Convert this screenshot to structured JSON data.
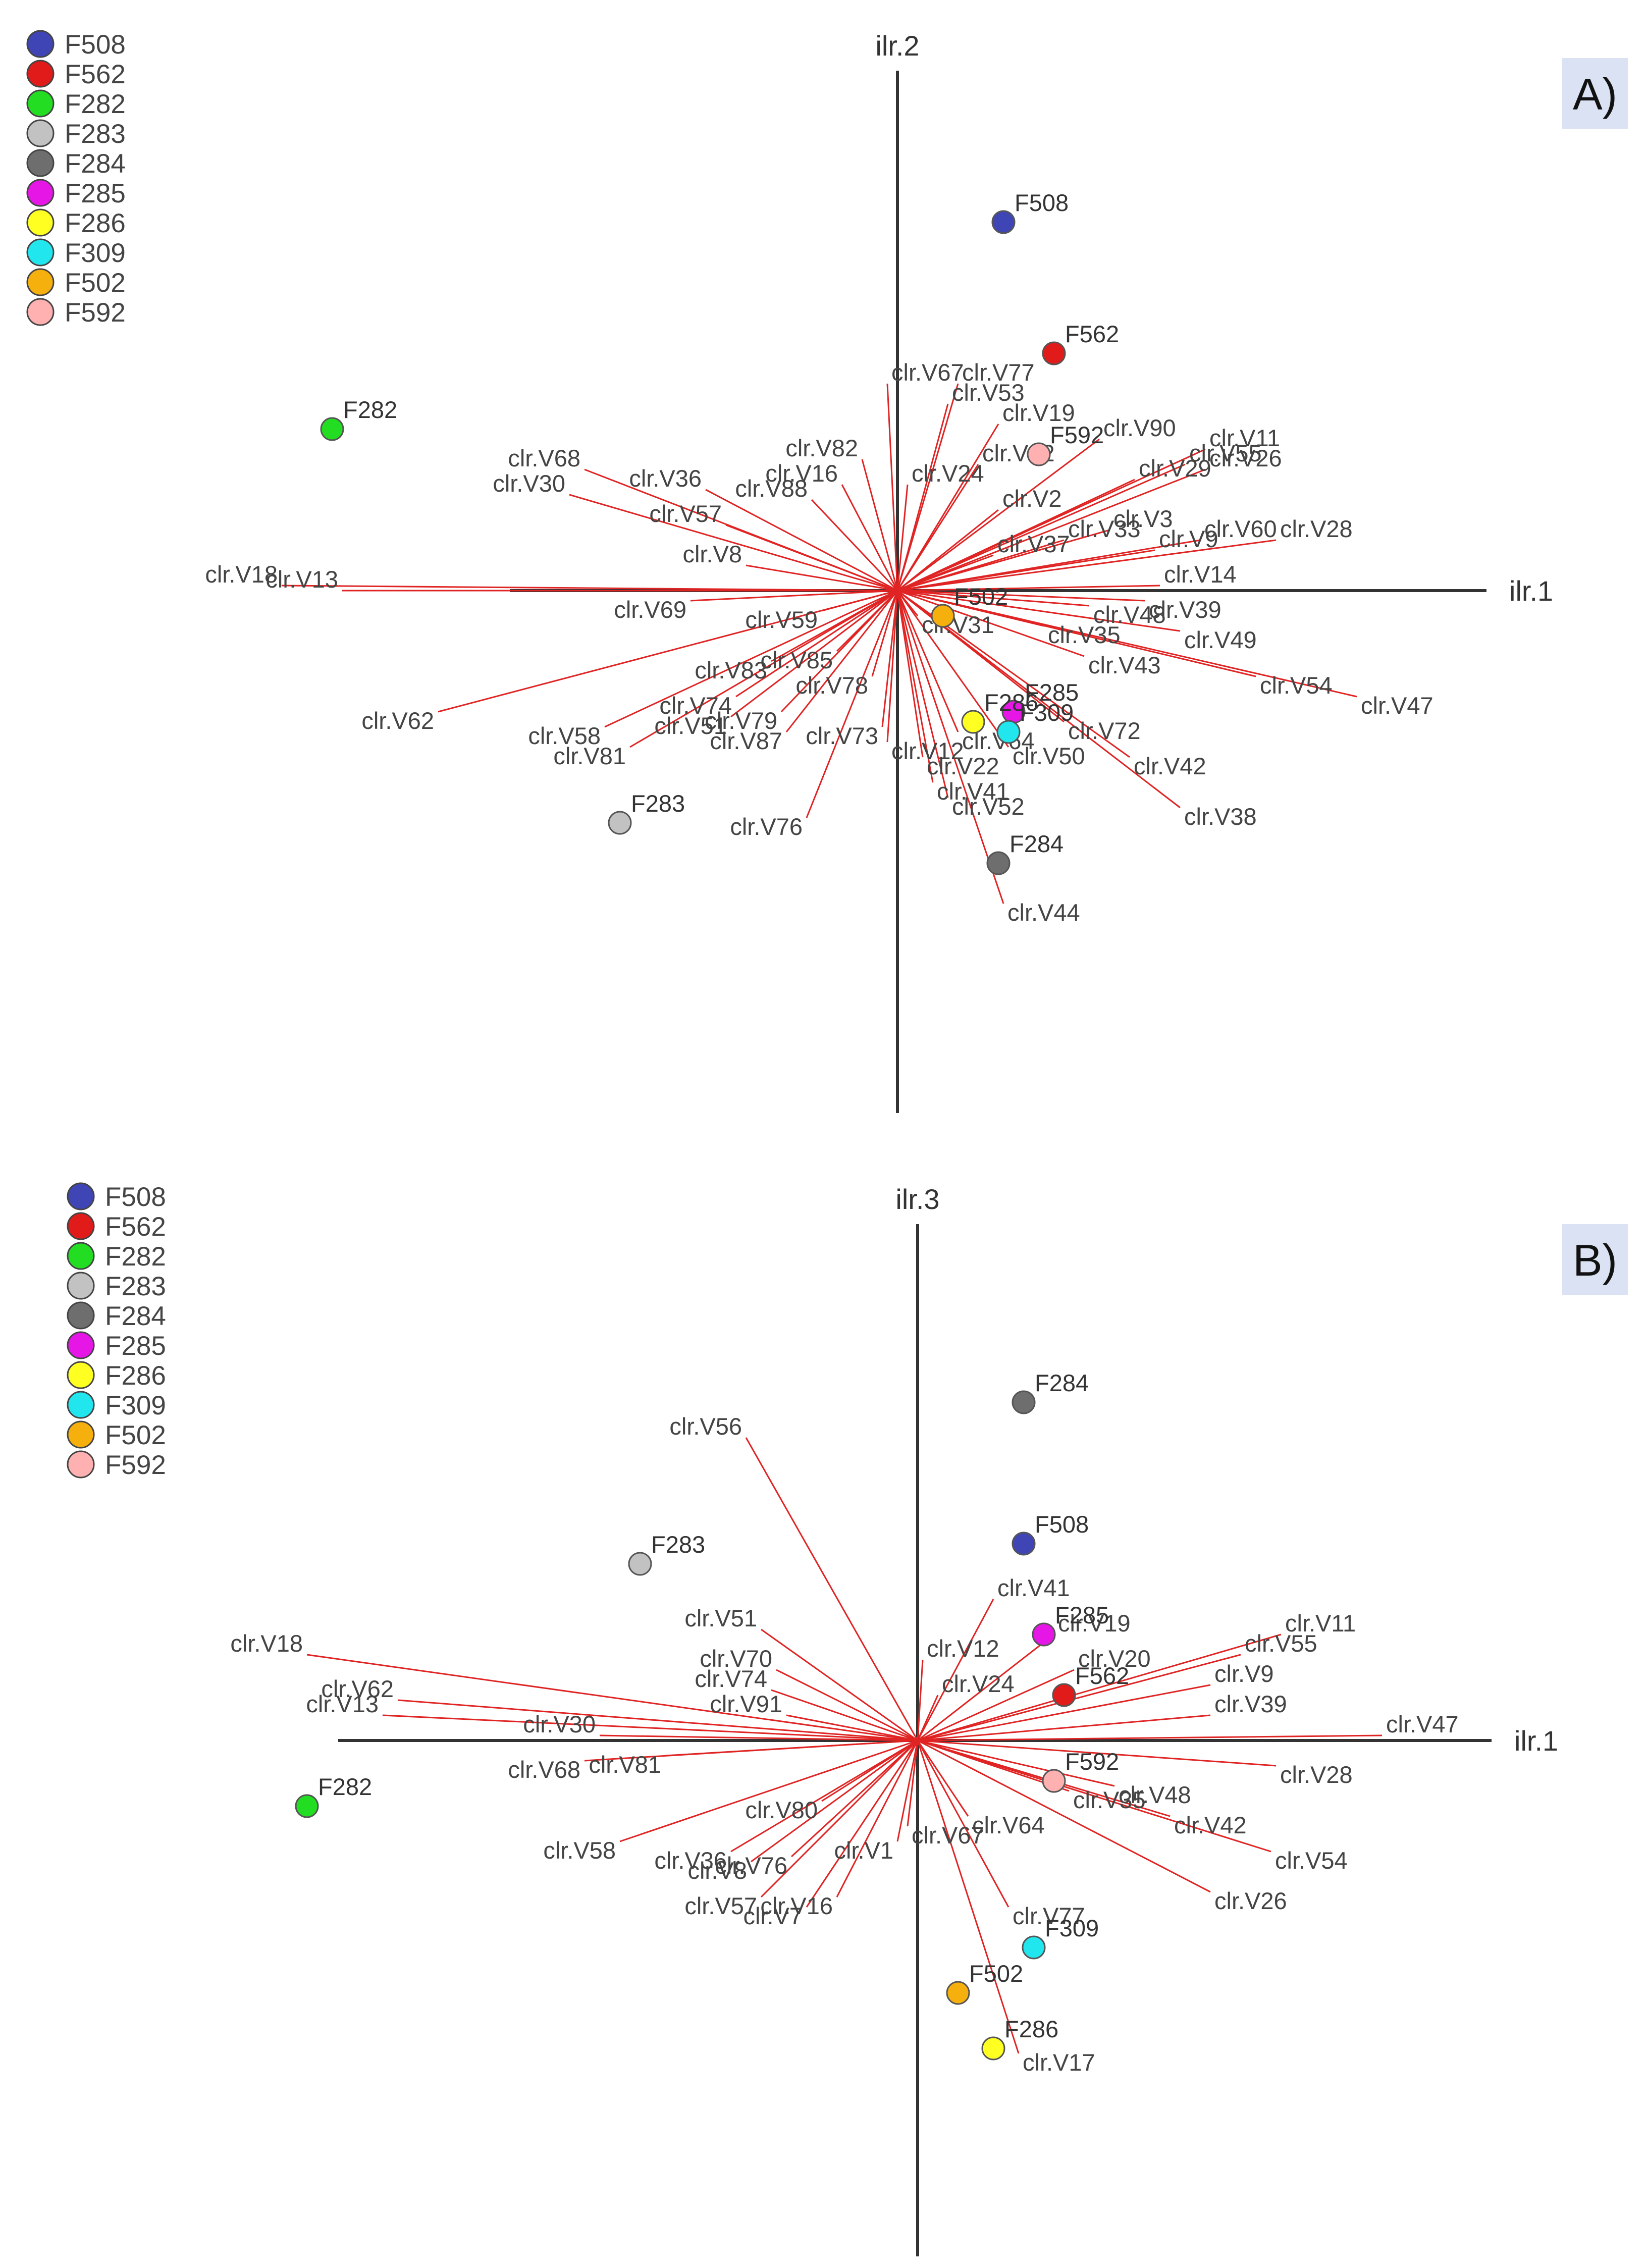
{
  "chart_data": [
    {
      "type": "scatter",
      "subtype": "biplot",
      "panel_label": "A)",
      "xlabel": "ilr.1",
      "ylabel": "ilr.2",
      "legend": [
        "F508",
        "F562",
        "F282",
        "F283",
        "F284",
        "F285",
        "F286",
        "F309",
        "F502",
        "F592"
      ],
      "scores": [
        {
          "name": "F508",
          "x": 0.21,
          "y": 0.73
        },
        {
          "name": "F562",
          "x": 0.31,
          "y": 0.47
        },
        {
          "name": "F282",
          "x": -1.12,
          "y": 0.32
        },
        {
          "name": "F283",
          "x": -0.55,
          "y": -0.46
        },
        {
          "name": "F284",
          "x": 0.2,
          "y": -0.54
        },
        {
          "name": "F285",
          "x": 0.23,
          "y": -0.24
        },
        {
          "name": "F286",
          "x": 0.15,
          "y": -0.26
        },
        {
          "name": "F309",
          "x": 0.22,
          "y": -0.28
        },
        {
          "name": "F502",
          "x": 0.09,
          "y": -0.05
        },
        {
          "name": "F592",
          "x": 0.28,
          "y": 0.27
        }
      ],
      "loadings": [
        {
          "name": "clr.V67",
          "x": -0.02,
          "y": 0.41
        },
        {
          "name": "clr.V77",
          "x": 0.12,
          "y": 0.41
        },
        {
          "name": "clr.V53",
          "x": 0.1,
          "y": 0.37
        },
        {
          "name": "clr.V19",
          "x": 0.2,
          "y": 0.33
        },
        {
          "name": "clr.V90",
          "x": 0.4,
          "y": 0.3
        },
        {
          "name": "clr.V32",
          "x": 0.16,
          "y": 0.25
        },
        {
          "name": "clr.V11",
          "x": 0.61,
          "y": 0.28
        },
        {
          "name": "clr.V55",
          "x": 0.57,
          "y": 0.25
        },
        {
          "name": "clr.V26",
          "x": 0.61,
          "y": 0.24
        },
        {
          "name": "clr.V29",
          "x": 0.47,
          "y": 0.22
        },
        {
          "name": "clr.V2",
          "x": 0.2,
          "y": 0.16
        },
        {
          "name": "clr.V3",
          "x": 0.42,
          "y": 0.12
        },
        {
          "name": "clr.V33",
          "x": 0.33,
          "y": 0.1
        },
        {
          "name": "clr.V60",
          "x": 0.6,
          "y": 0.1
        },
        {
          "name": "clr.V28",
          "x": 0.75,
          "y": 0.1
        },
        {
          "name": "clr.V9",
          "x": 0.51,
          "y": 0.08
        },
        {
          "name": "clr.V37",
          "x": 0.19,
          "y": 0.07
        },
        {
          "name": "clr.V14",
          "x": 0.52,
          "y": 0.01
        },
        {
          "name": "clr.V39",
          "x": 0.49,
          "y": -0.02
        },
        {
          "name": "clr.V48",
          "x": 0.38,
          "y": -0.03
        },
        {
          "name": "clr.V35",
          "x": 0.29,
          "y": -0.07
        },
        {
          "name": "clr.V49",
          "x": 0.56,
          "y": -0.08
        },
        {
          "name": "clr.V43",
          "x": 0.37,
          "y": -0.13
        },
        {
          "name": "clr.V54",
          "x": 0.71,
          "y": -0.17
        },
        {
          "name": "clr.V47",
          "x": 0.91,
          "y": -0.21
        },
        {
          "name": "clr.V72",
          "x": 0.33,
          "y": -0.26
        },
        {
          "name": "clr.V42",
          "x": 0.46,
          "y": -0.33
        },
        {
          "name": "clr.V38",
          "x": 0.56,
          "y": -0.43
        },
        {
          "name": "clr.V50",
          "x": 0.22,
          "y": -0.31
        },
        {
          "name": "clr.V64",
          "x": 0.12,
          "y": -0.28
        },
        {
          "name": "clr.V22",
          "x": 0.05,
          "y": -0.33
        },
        {
          "name": "clr.V41",
          "x": 0.07,
          "y": -0.38
        },
        {
          "name": "clr.V52",
          "x": 0.1,
          "y": -0.41
        },
        {
          "name": "clr.V44",
          "x": 0.21,
          "y": -0.62
        },
        {
          "name": "clr.V12",
          "x": -0.02,
          "y": -0.3
        },
        {
          "name": "clr.V73",
          "x": -0.03,
          "y": -0.27
        },
        {
          "name": "clr.V78",
          "x": -0.05,
          "y": -0.17
        },
        {
          "name": "clr.V76",
          "x": -0.18,
          "y": -0.45
        },
        {
          "name": "clr.V79",
          "x": -0.23,
          "y": -0.24
        },
        {
          "name": "clr.V87",
          "x": -0.22,
          "y": -0.28
        },
        {
          "name": "clr.V74",
          "x": -0.32,
          "y": -0.21
        },
        {
          "name": "clr.V51",
          "x": -0.33,
          "y": -0.25
        },
        {
          "name": "clr.V81",
          "x": -0.53,
          "y": -0.31
        },
        {
          "name": "clr.V58",
          "x": -0.58,
          "y": -0.27
        },
        {
          "name": "clr.V62",
          "x": -0.91,
          "y": -0.24
        },
        {
          "name": "clr.V18",
          "x": -1.22,
          "y": 0.01
        },
        {
          "name": "clr.V13",
          "x": -1.1,
          "y": 0.0
        },
        {
          "name": "clr.V68",
          "x": -0.62,
          "y": 0.24
        },
        {
          "name": "clr.V30",
          "x": -0.65,
          "y": 0.19
        },
        {
          "name": "clr.V36",
          "x": -0.38,
          "y": 0.2
        },
        {
          "name": "clr.V57",
          "x": -0.34,
          "y": 0.13
        },
        {
          "name": "clr.V8",
          "x": -0.3,
          "y": 0.05
        },
        {
          "name": "clr.V69",
          "x": -0.41,
          "y": -0.02
        },
        {
          "name": "clr.V59",
          "x": -0.15,
          "y": -0.04
        },
        {
          "name": "clr.V85",
          "x": -0.12,
          "y": -0.12
        },
        {
          "name": "clr.V83",
          "x": -0.25,
          "y": -0.14
        },
        {
          "name": "clr.V82",
          "x": -0.07,
          "y": 0.26
        },
        {
          "name": "clr.V16",
          "x": -0.11,
          "y": 0.21
        },
        {
          "name": "clr.V24",
          "x": 0.02,
          "y": 0.21
        },
        {
          "name": "clr.V88",
          "x": -0.17,
          "y": 0.18
        },
        {
          "name": "clr.V31",
          "x": 0.04,
          "y": -0.05
        }
      ]
    },
    {
      "type": "scatter",
      "subtype": "biplot",
      "panel_label": "B)",
      "xlabel": "ilr.1",
      "ylabel": "ilr.3",
      "legend": [
        "F508",
        "F562",
        "F282",
        "F283",
        "F284",
        "F285",
        "F286",
        "F309",
        "F502",
        "F592"
      ],
      "scores": [
        {
          "name": "F284",
          "x": 0.21,
          "y": 0.67
        },
        {
          "name": "F508",
          "x": 0.21,
          "y": 0.39
        },
        {
          "name": "F283",
          "x": -0.55,
          "y": 0.35
        },
        {
          "name": "F285",
          "x": 0.25,
          "y": 0.21
        },
        {
          "name": "F282",
          "x": -1.21,
          "y": -0.13
        },
        {
          "name": "F309",
          "x": 0.23,
          "y": -0.41
        },
        {
          "name": "F502",
          "x": 0.08,
          "y": -0.5
        },
        {
          "name": "F286",
          "x": 0.15,
          "y": -0.61
        },
        {
          "name": "F562",
          "x": 0.29,
          "y": 0.09
        },
        {
          "name": "F592",
          "x": 0.27,
          "y": -0.08
        }
      ],
      "loadings": [
        {
          "name": "clr.V56",
          "x": -0.34,
          "y": 0.6
        },
        {
          "name": "clr.V51",
          "x": -0.31,
          "y": 0.22
        },
        {
          "name": "clr.V18",
          "x": -1.21,
          "y": 0.17
        },
        {
          "name": "clr.V62",
          "x": -1.03,
          "y": 0.08
        },
        {
          "name": "clr.V13",
          "x": -1.06,
          "y": 0.05
        },
        {
          "name": "clr.V70",
          "x": -0.28,
          "y": 0.14
        },
        {
          "name": "clr.V74",
          "x": -0.29,
          "y": 0.1
        },
        {
          "name": "clr.V91",
          "x": -0.26,
          "y": 0.05
        },
        {
          "name": "clr.V30",
          "x": -0.63,
          "y": 0.01
        },
        {
          "name": "clr.V68",
          "x": -0.66,
          "y": -0.04
        },
        {
          "name": "clr.V81",
          "x": -0.5,
          "y": -0.03
        },
        {
          "name": "clr.V58",
          "x": -0.59,
          "y": -0.2
        },
        {
          "name": "clr.V36",
          "x": -0.37,
          "y": -0.22
        },
        {
          "name": "clr.V76",
          "x": -0.25,
          "y": -0.23
        },
        {
          "name": "clr.V57",
          "x": -0.31,
          "y": -0.31
        },
        {
          "name": "clr.V16",
          "x": -0.16,
          "y": -0.31
        },
        {
          "name": "clr.V7",
          "x": -0.22,
          "y": -0.33
        },
        {
          "name": "clr.V1",
          "x": -0.04,
          "y": -0.2
        },
        {
          "name": "clr.V67",
          "x": -0.02,
          "y": -0.17
        },
        {
          "name": "clr.V64",
          "x": 0.1,
          "y": -0.15
        },
        {
          "name": "clr.V77",
          "x": 0.18,
          "y": -0.33
        },
        {
          "name": "clr.V17",
          "x": 0.2,
          "y": -0.62
        },
        {
          "name": "clr.V41",
          "x": 0.15,
          "y": 0.28
        },
        {
          "name": "clr.V19",
          "x": 0.27,
          "y": 0.21
        },
        {
          "name": "clr.V12",
          "x": 0.01,
          "y": 0.16
        },
        {
          "name": "clr.V24",
          "x": 0.04,
          "y": 0.09
        },
        {
          "name": "clr.V20",
          "x": 0.31,
          "y": 0.14
        },
        {
          "name": "clr.V11",
          "x": 0.72,
          "y": 0.21
        },
        {
          "name": "clr.V55",
          "x": 0.64,
          "y": 0.17
        },
        {
          "name": "clr.V9",
          "x": 0.58,
          "y": 0.11
        },
        {
          "name": "clr.V39",
          "x": 0.58,
          "y": 0.05
        },
        {
          "name": "clr.V47",
          "x": 0.92,
          "y": 0.01
        },
        {
          "name": "clr.V28",
          "x": 0.71,
          "y": -0.05
        },
        {
          "name": "clr.V48",
          "x": 0.39,
          "y": -0.09
        },
        {
          "name": "clr.V35",
          "x": 0.3,
          "y": -0.1
        },
        {
          "name": "clr.V42",
          "x": 0.5,
          "y": -0.15
        },
        {
          "name": "clr.V54",
          "x": 0.7,
          "y": -0.22
        },
        {
          "name": "clr.V26",
          "x": 0.58,
          "y": -0.3
        },
        {
          "name": "clr.V80",
          "x": -0.19,
          "y": -0.12
        },
        {
          "name": "clr.V8",
          "x": -0.33,
          "y": -0.24
        }
      ]
    }
  ]
}
